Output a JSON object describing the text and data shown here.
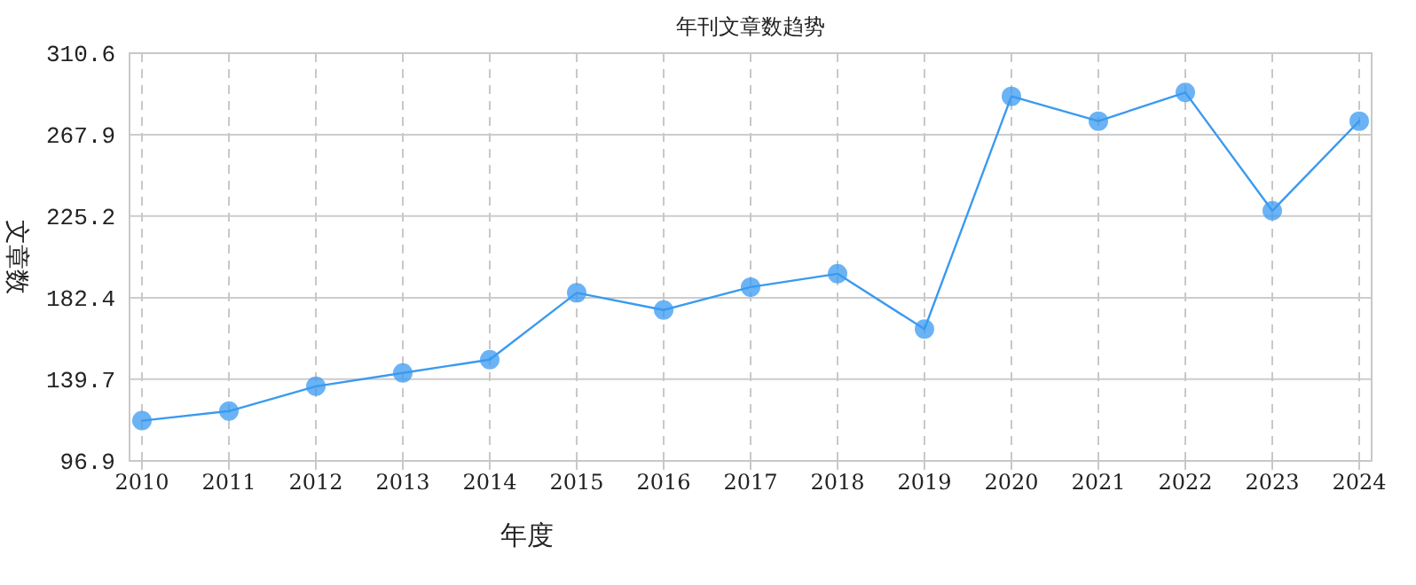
{
  "chart_data": {
    "type": "line",
    "title": "年刊文章数趋势",
    "xlabel": "年度",
    "ylabel": "文章数",
    "categories": [
      "2010",
      "2011",
      "2012",
      "2013",
      "2014",
      "2015",
      "2016",
      "2017",
      "2018",
      "2019",
      "2020",
      "2021",
      "2022",
      "2023",
      "2024"
    ],
    "series": [
      {
        "color": "#3a9af0",
        "values": [
          118,
          123,
          136,
          143,
          150,
          185,
          176,
          188,
          195,
          166,
          288,
          275,
          290,
          228,
          275
        ]
      }
    ],
    "ylim": [
      96.9,
      310.6
    ],
    "yticks": [
      96.9,
      139.7,
      182.4,
      225.2,
      267.9,
      310.6
    ],
    "grid": true,
    "marker": "circle",
    "line_style": "solid"
  }
}
